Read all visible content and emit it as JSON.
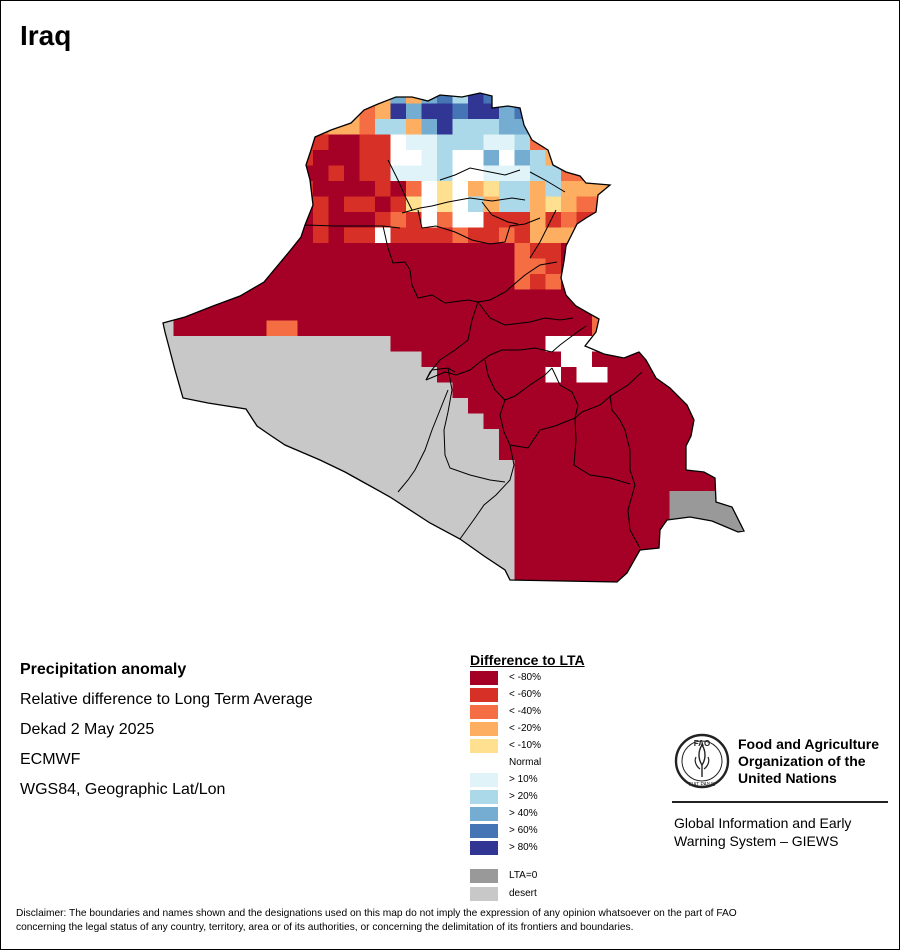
{
  "map": {
    "title": "Iraq",
    "legend_scale_base": "LTA",
    "colors": {
      "lt_minus_80": "#a50026",
      "lt_minus_60": "#d73027",
      "lt_minus_40": "#f46d43",
      "lt_minus_20": "#fdae61",
      "lt_minus_10": "#fee090",
      "normal": "#ffffff",
      "gt_10": "#e0f3f8",
      "gt_20": "#abd9e9",
      "gt_40": "#74add1",
      "gt_60": "#4575b4",
      "gt_80": "#313695",
      "lta_zero": "#999999",
      "desert": "#c8c8c8",
      "boundary": "#000000"
    }
  },
  "info": {
    "heading": "Precipitation anomaly",
    "line1": "Relative difference to Long Term Average",
    "line2": "Dekad 2 May 2025",
    "line3": "ECMWF",
    "line4": "WGS84, Geographic Lat/Lon"
  },
  "legend": {
    "title": "Difference to LTA",
    "items": [
      {
        "label": "< -80%",
        "color": "#a50026"
      },
      {
        "label": "< -60%",
        "color": "#d73027"
      },
      {
        "label": "< -40%",
        "color": "#f46d43"
      },
      {
        "label": "< -20%",
        "color": "#fdae61"
      },
      {
        "label": "< -10%",
        "color": "#fee090"
      },
      {
        "label": "Normal",
        "color": "#ffffff"
      },
      {
        "label": "> 10%",
        "color": "#e0f3f8"
      },
      {
        "label": "> 20%",
        "color": "#abd9e9"
      },
      {
        "label": "> 40%",
        "color": "#74add1"
      },
      {
        "label": "> 60%",
        "color": "#4575b4"
      },
      {
        "label": "> 80%",
        "color": "#313695"
      },
      {
        "label": "LTA=0",
        "color": "#999999"
      },
      {
        "label": "desert",
        "color": "#c8c8c8"
      }
    ]
  },
  "fao": {
    "logo_icon": "fao-emblem-icon",
    "logo_letters": "FAO",
    "logo_motto": "FIAT PANIS",
    "name_line1": "Food and Agriculture",
    "name_line2": "Organization of the",
    "name_line3": "United Nations",
    "giews_line1": "Global Information and Early",
    "giews_line2": "Warning System – GIEWS"
  },
  "disclaimer": {
    "line1": "Disclaimer: The boundaries and names shown and the designations used on this map do not imply the expression of any opinion whatsoever on the part of FAO",
    "line2": "concerning the legal status of any country, territory, area or of its authorities, or concerning the delimitation of its frontiers and boundaries."
  }
}
